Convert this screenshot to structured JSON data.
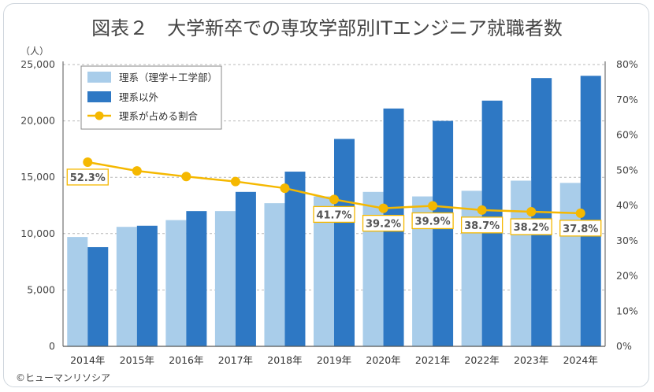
{
  "chart_data": {
    "type": "bar",
    "title": "図表２　大学新卒での専攻学部別ITエンジニア就職者数",
    "ylabel": "（人）",
    "categories": [
      "2014年",
      "2015年",
      "2016年",
      "2017年",
      "2018年",
      "2019年",
      "2020年",
      "2021年",
      "2022年",
      "2023年",
      "2024年"
    ],
    "series": [
      {
        "name": "理系（理学＋工学部）",
        "axis": "left",
        "color": "#a9cdea",
        "values": [
          9700,
          10600,
          11200,
          12000,
          12700,
          13300,
          13700,
          13300,
          13800,
          14700,
          14500
        ]
      },
      {
        "name": "理系以外",
        "axis": "left",
        "color": "#2e78c4",
        "values": [
          8800,
          10700,
          12000,
          13700,
          15500,
          18400,
          21100,
          20000,
          21800,
          23800,
          24000
        ]
      },
      {
        "name": "理系が占める割合",
        "type": "line",
        "axis": "right",
        "color": "#f5b800",
        "values": [
          52.3,
          49.8,
          48.2,
          46.8,
          44.9,
          41.7,
          39.2,
          39.9,
          38.7,
          38.2,
          37.8
        ],
        "data_labels": [
          "52.3%",
          "",
          "",
          "",
          "",
          "41.7%",
          "39.2%",
          "39.9%",
          "38.7%",
          "38.2%",
          "37.8%"
        ]
      }
    ],
    "y_left": {
      "min": 0,
      "max": 25000,
      "ticks": [
        "0",
        "5,000",
        "10,000",
        "15,000",
        "20,000",
        "25,000"
      ],
      "tick_values": [
        0,
        5000,
        10000,
        15000,
        20000,
        25000
      ]
    },
    "y_right": {
      "min": 0,
      "max": 80,
      "ticks": [
        "0%",
        "10%",
        "20%",
        "30%",
        "40%",
        "50%",
        "60%",
        "70%",
        "80%"
      ],
      "tick_values": [
        0,
        10,
        20,
        30,
        40,
        50,
        60,
        70,
        80
      ]
    },
    "grid": true,
    "legend_position": "top-left"
  },
  "credit": "©ヒューマンリソシア"
}
